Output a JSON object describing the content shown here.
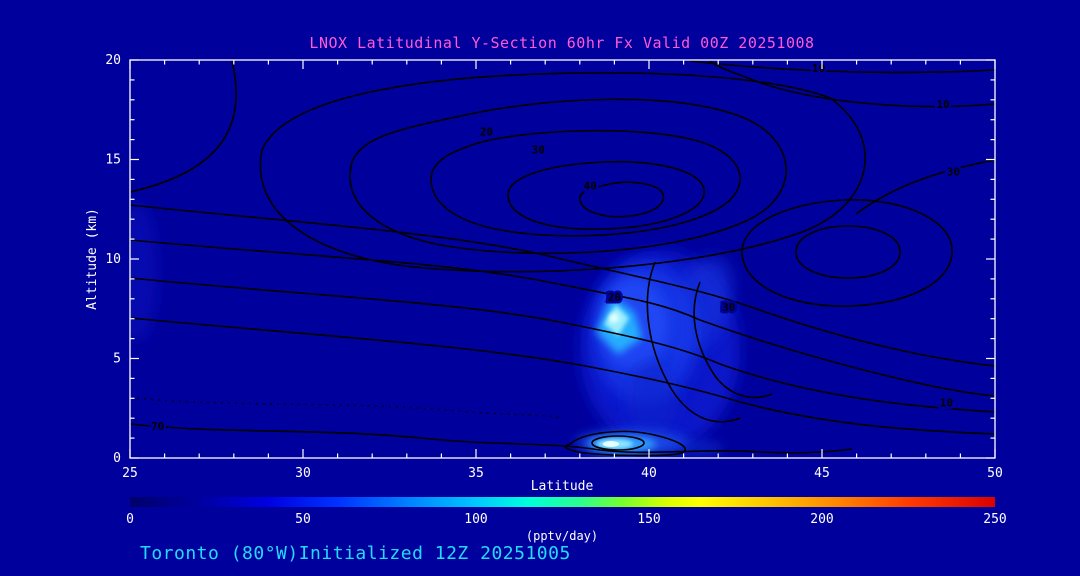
{
  "title": "LNOX Latitudinal Y-Section 60hr  Fx Valid 00Z 20251008",
  "footer": "Toronto (80°W)Initialized 12Z 20251005",
  "colors": {
    "background": "#00009c",
    "title": "#ff5ad7",
    "footer": "#22dcff",
    "axis": "#ffffff",
    "contour": "#000000"
  },
  "chart_data": {
    "type": "contour",
    "title": "LNOX Latitudinal Y-Section 60hr  Fx Valid 00Z 20251008",
    "xlabel": "Latitude",
    "ylabel": "Altitude (km)",
    "xlim": [
      25,
      50
    ],
    "ylim": [
      0,
      20
    ],
    "xticks": [
      25,
      30,
      35,
      40,
      45,
      50
    ],
    "yticks": [
      0,
      5,
      10,
      15,
      20
    ],
    "x_minor_step": 1,
    "y_minor_step": 1,
    "grid": false,
    "contour_labels": [
      {
        "value": "10",
        "lat": 44.9,
        "alt": 19.6
      },
      {
        "value": "10",
        "lat": 48.5,
        "alt": 17.8
      },
      {
        "value": "30",
        "lat": 48.8,
        "alt": 14.4
      },
      {
        "value": "20",
        "lat": 35.3,
        "alt": 16.4
      },
      {
        "value": "30",
        "lat": 36.8,
        "alt": 15.5
      },
      {
        "value": "40",
        "lat": 38.3,
        "alt": 13.7
      },
      {
        "value": "20",
        "lat": 39.0,
        "alt": 8.1
      },
      {
        "value": "30",
        "lat": 42.3,
        "alt": 7.6
      },
      {
        "value": "10",
        "lat": 48.6,
        "alt": 2.8
      },
      {
        "value": "70",
        "lat": 25.8,
        "alt": 1.6
      }
    ],
    "filled_maxima": [
      {
        "lat": 39.1,
        "alt": 7.0,
        "approx_value_pptv_day": 120
      },
      {
        "lat": 39.2,
        "alt": 0.4,
        "approx_value_pptv_day": 130
      }
    ],
    "colorbar": {
      "min": 0,
      "max": 250,
      "ticks": [
        0,
        50,
        100,
        150,
        200,
        250
      ],
      "units_label": "(pptv/day)",
      "stops": [
        [
          0.0,
          "#00006b"
        ],
        [
          0.08,
          "#0000a0"
        ],
        [
          0.16,
          "#0000e1"
        ],
        [
          0.24,
          "#0032ff"
        ],
        [
          0.32,
          "#0080ff"
        ],
        [
          0.4,
          "#00c8ff"
        ],
        [
          0.46,
          "#00ffda"
        ],
        [
          0.52,
          "#2bff8e"
        ],
        [
          0.57,
          "#78ff2b"
        ],
        [
          0.62,
          "#d7ff00"
        ],
        [
          0.66,
          "#ffff00"
        ],
        [
          0.74,
          "#ffc300"
        ],
        [
          0.82,
          "#ff8400"
        ],
        [
          0.9,
          "#ff3c00"
        ],
        [
          1.0,
          "#dc0000"
        ]
      ]
    }
  }
}
